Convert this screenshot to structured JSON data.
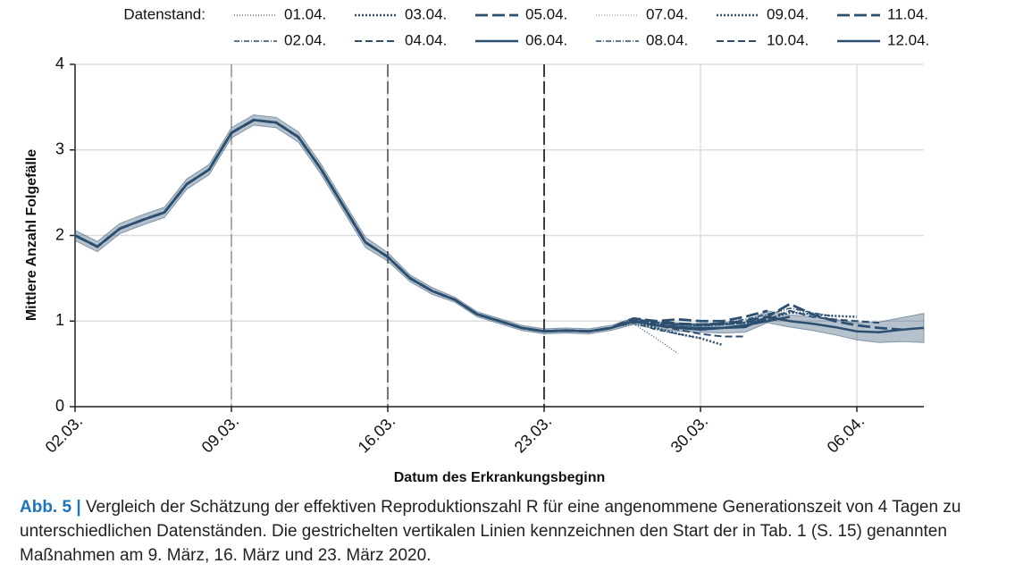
{
  "chart_data": {
    "type": "line",
    "legend_title": "Datenstand:",
    "xlabel": "Datum des Erkrankungsbeginn",
    "ylabel": "Mittlere Anzahl Folgefälle",
    "x": [
      "02.03.",
      "03.03.",
      "04.03.",
      "05.03.",
      "06.03.",
      "07.03.",
      "08.03.",
      "09.03.",
      "10.03.",
      "11.03.",
      "12.03.",
      "13.03.",
      "14.03.",
      "15.03.",
      "16.03.",
      "17.03.",
      "18.03.",
      "19.03.",
      "20.03.",
      "21.03.",
      "22.03.",
      "23.03.",
      "24.03.",
      "25.03.",
      "26.03.",
      "27.03.",
      "28.03.",
      "29.03.",
      "30.03.",
      "31.03.",
      "01.04.",
      "02.04.",
      "03.04.",
      "04.04.",
      "05.04.",
      "06.04.",
      "07.04.",
      "08.04.",
      "09.04."
    ],
    "xticks": [
      "02.03.",
      "09.03.",
      "16.03.",
      "23.03.",
      "30.03.",
      "06.04."
    ],
    "vlines": [
      {
        "x": "09.03.",
        "color": "#999999"
      },
      {
        "x": "16.03.",
        "color": "#555555"
      },
      {
        "x": "23.03.",
        "color": "#111111"
      }
    ],
    "ylim": [
      0,
      4
    ],
    "yticks": [
      0,
      1,
      2,
      3,
      4
    ],
    "grid": true,
    "band": {
      "color": "#2c4f70",
      "upper": [
        2.06,
        1.93,
        2.14,
        2.24,
        2.33,
        2.66,
        2.83,
        3.26,
        3.41,
        3.38,
        3.21,
        2.84,
        2.41,
        1.98,
        1.8,
        1.54,
        1.39,
        1.28,
        1.11,
        1.03,
        0.95,
        0.91,
        0.92,
        0.91,
        0.95,
        1.04,
        0.99,
        0.98,
        0.97,
        0.98,
        0.99,
        1.12,
        1.07,
        1.05,
        1.02,
        0.98,
        0.99,
        1.04,
        1.09
      ],
      "lower": [
        1.94,
        1.81,
        2.02,
        2.12,
        2.21,
        2.54,
        2.71,
        3.14,
        3.29,
        3.26,
        3.09,
        2.72,
        2.29,
        1.86,
        1.7,
        1.46,
        1.31,
        1.22,
        1.05,
        0.97,
        0.89,
        0.85,
        0.86,
        0.85,
        0.89,
        0.96,
        0.91,
        0.88,
        0.87,
        0.86,
        0.87,
        0.98,
        0.93,
        0.89,
        0.84,
        0.78,
        0.75,
        0.76,
        0.75
      ]
    },
    "series": [
      {
        "name": "01.04.",
        "color": "#2c4f70",
        "dash": "1 2",
        "width": 1.2,
        "values": [
          2.0,
          1.87,
          2.08,
          2.18,
          2.27,
          2.6,
          2.77,
          3.2,
          3.35,
          3.32,
          3.15,
          2.78,
          2.35,
          1.92,
          1.75,
          1.5,
          1.35,
          1.25,
          1.08,
          1.0,
          0.92,
          0.88,
          0.89,
          0.88,
          0.92,
          0.97,
          0.8,
          0.62,
          null,
          null,
          null,
          null,
          null,
          null,
          null,
          null,
          null,
          null,
          null
        ]
      },
      {
        "name": "02.04.",
        "color": "#2c4f70",
        "dash": "6 2 1 2",
        "width": 1.5,
        "values": [
          2.0,
          1.87,
          2.08,
          2.18,
          2.27,
          2.6,
          2.77,
          3.2,
          3.35,
          3.32,
          3.15,
          2.78,
          2.35,
          1.92,
          1.75,
          1.5,
          1.35,
          1.25,
          1.08,
          1.0,
          0.92,
          0.88,
          0.89,
          0.88,
          0.92,
          0.98,
          0.9,
          0.85,
          0.8,
          null,
          null,
          null,
          null,
          null,
          null,
          null,
          null,
          null,
          null
        ]
      },
      {
        "name": "03.04.",
        "color": "#2c4f70",
        "dash": "2 2",
        "width": 2.5,
        "values": [
          2.0,
          1.87,
          2.08,
          2.18,
          2.27,
          2.6,
          2.77,
          3.2,
          3.35,
          3.32,
          3.15,
          2.78,
          2.35,
          1.92,
          1.75,
          1.5,
          1.35,
          1.25,
          1.08,
          1.0,
          0.92,
          0.88,
          0.89,
          0.88,
          0.92,
          1.0,
          0.92,
          0.85,
          0.8,
          0.72,
          null,
          null,
          null,
          null,
          null,
          null,
          null,
          null,
          null
        ]
      },
      {
        "name": "04.04.",
        "color": "#2c4f70",
        "dash": "8 4",
        "width": 2,
        "values": [
          2.0,
          1.87,
          2.08,
          2.18,
          2.27,
          2.6,
          2.77,
          3.2,
          3.35,
          3.32,
          3.15,
          2.78,
          2.35,
          1.92,
          1.75,
          1.5,
          1.35,
          1.25,
          1.08,
          1.0,
          0.92,
          0.88,
          0.89,
          0.88,
          0.92,
          1.0,
          0.95,
          0.9,
          0.85,
          0.82,
          0.82,
          null,
          null,
          null,
          null,
          null,
          null,
          null,
          null
        ]
      },
      {
        "name": "05.04.",
        "color": "#2c4f70",
        "dash": "14 5",
        "width": 2.8,
        "values": [
          2.0,
          1.87,
          2.08,
          2.18,
          2.27,
          2.6,
          2.77,
          3.2,
          3.35,
          3.32,
          3.15,
          2.78,
          2.35,
          1.92,
          1.75,
          1.5,
          1.35,
          1.25,
          1.08,
          1.0,
          0.92,
          0.88,
          0.89,
          0.88,
          0.92,
          1.03,
          1.0,
          1.02,
          1.0,
          1.0,
          1.05,
          1.12,
          null,
          null,
          null,
          null,
          null,
          null,
          null
        ]
      },
      {
        "name": "06.04.",
        "color": "#2c4f70",
        "dash": "",
        "width": 2.5,
        "values": [
          2.0,
          1.87,
          2.08,
          2.18,
          2.27,
          2.6,
          2.77,
          3.2,
          3.35,
          3.32,
          3.15,
          2.78,
          2.35,
          1.92,
          1.75,
          1.5,
          1.35,
          1.25,
          1.08,
          1.0,
          0.92,
          0.88,
          0.89,
          0.88,
          0.92,
          1.0,
          0.95,
          0.92,
          0.9,
          0.92,
          0.95,
          1.0,
          1.05,
          null,
          null,
          null,
          null,
          null,
          null
        ]
      },
      {
        "name": "07.04.",
        "color": "#8aa0b5",
        "dash": "1 2",
        "width": 1.2,
        "values": [
          2.0,
          1.87,
          2.08,
          2.18,
          2.27,
          2.6,
          2.77,
          3.2,
          3.35,
          3.32,
          3.15,
          2.78,
          2.35,
          1.92,
          1.75,
          1.5,
          1.35,
          1.25,
          1.08,
          1.0,
          0.92,
          0.88,
          0.89,
          0.88,
          0.92,
          1.0,
          0.97,
          0.95,
          0.95,
          0.97,
          1.0,
          1.08,
          1.12,
          1.1,
          null,
          null,
          null,
          null,
          null
        ]
      },
      {
        "name": "08.04.",
        "color": "#2c4f70",
        "dash": "6 2 1 2",
        "width": 1.5,
        "values": [
          2.0,
          1.87,
          2.08,
          2.18,
          2.27,
          2.6,
          2.77,
          3.2,
          3.35,
          3.32,
          3.15,
          2.78,
          2.35,
          1.92,
          1.75,
          1.5,
          1.35,
          1.25,
          1.08,
          1.0,
          0.92,
          0.88,
          0.89,
          0.88,
          0.92,
          1.0,
          0.97,
          0.95,
          0.96,
          0.98,
          1.02,
          1.08,
          1.15,
          1.1,
          1.05,
          null,
          null,
          null,
          null
        ]
      },
      {
        "name": "09.04.",
        "color": "#2c4f70",
        "dash": "2 2",
        "width": 2.5,
        "values": [
          2.0,
          1.87,
          2.08,
          2.18,
          2.27,
          2.6,
          2.77,
          3.2,
          3.35,
          3.32,
          3.15,
          2.78,
          2.35,
          1.92,
          1.75,
          1.5,
          1.35,
          1.25,
          1.08,
          1.0,
          0.92,
          0.88,
          0.89,
          0.88,
          0.92,
          1.02,
          0.98,
          0.96,
          0.95,
          0.96,
          0.98,
          1.02,
          1.1,
          1.08,
          1.06,
          1.05,
          null,
          null,
          null
        ]
      },
      {
        "name": "10.04.",
        "color": "#2c4f70",
        "dash": "8 4",
        "width": 2,
        "values": [
          2.0,
          1.87,
          2.08,
          2.18,
          2.27,
          2.6,
          2.77,
          3.2,
          3.35,
          3.32,
          3.15,
          2.78,
          2.35,
          1.92,
          1.75,
          1.5,
          1.35,
          1.25,
          1.08,
          1.0,
          0.92,
          0.88,
          0.89,
          0.88,
          0.92,
          1.02,
          0.98,
          0.96,
          0.95,
          0.96,
          0.98,
          1.02,
          1.12,
          1.05,
          1.02,
          1.0,
          0.98,
          null,
          null
        ]
      },
      {
        "name": "11.04.",
        "color": "#2c4f70",
        "dash": "14 5",
        "width": 2.8,
        "values": [
          2.0,
          1.87,
          2.08,
          2.18,
          2.27,
          2.6,
          2.77,
          3.2,
          3.35,
          3.32,
          3.15,
          2.78,
          2.35,
          1.92,
          1.75,
          1.5,
          1.35,
          1.25,
          1.08,
          1.0,
          0.92,
          0.88,
          0.89,
          0.88,
          0.92,
          1.03,
          1.0,
          0.97,
          0.96,
          0.97,
          1.0,
          1.05,
          1.2,
          1.08,
          1.0,
          0.95,
          0.92,
          0.9,
          null
        ]
      },
      {
        "name": "12.04.",
        "color": "#2c4f70",
        "dash": "",
        "width": 2.5,
        "values": [
          2.0,
          1.87,
          2.08,
          2.18,
          2.27,
          2.6,
          2.77,
          3.2,
          3.35,
          3.32,
          3.15,
          2.78,
          2.35,
          1.92,
          1.75,
          1.5,
          1.35,
          1.25,
          1.08,
          1.0,
          0.92,
          0.88,
          0.89,
          0.88,
          0.92,
          1.0,
          0.95,
          0.93,
          0.92,
          0.92,
          0.93,
          1.05,
          1.0,
          0.97,
          0.93,
          0.88,
          0.87,
          0.9,
          0.92
        ]
      }
    ]
  },
  "caption": {
    "label": "Abb. 5 |",
    "text": "Vergleich der Schätzung der effektiven Reproduktionszahl R für eine angenommene Generationszeit von 4 Tagen zu unterschiedlichen Datenständen. Die gestrichelten vertikalen Linien kennzeichnen den Start der in Tab. 1 (S. 15) genannten Maßnahmen am 9. März, 16. März und 23. März 2020."
  }
}
